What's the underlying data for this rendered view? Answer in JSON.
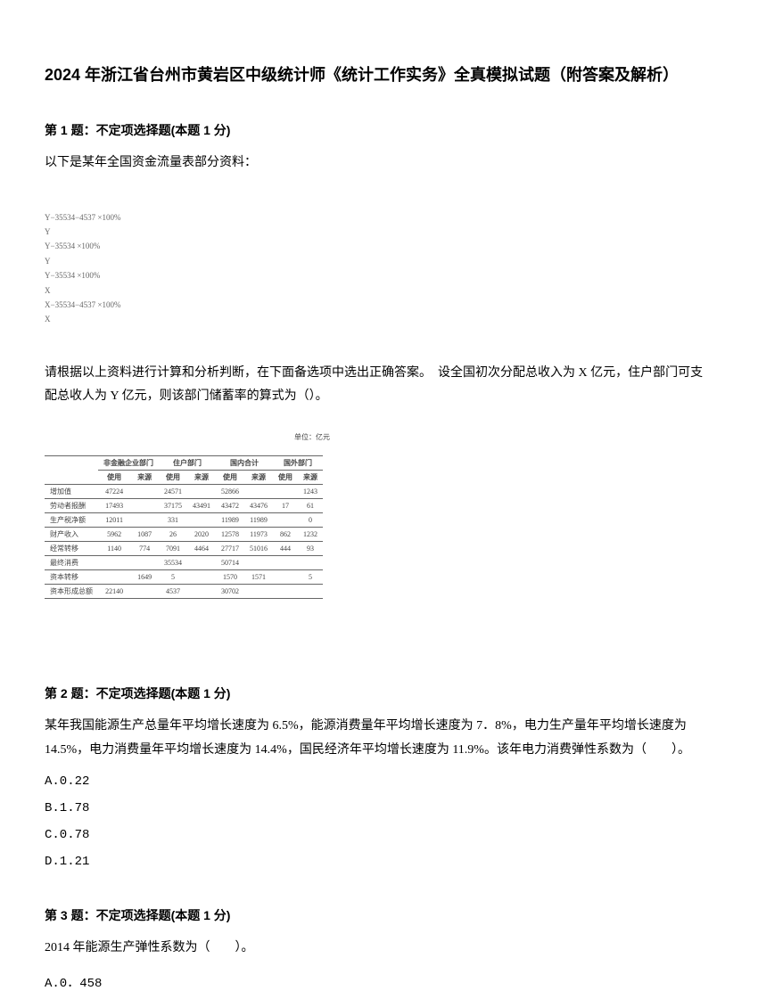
{
  "document": {
    "title": "2024 年浙江省台州市黄岩区中级统计师《统计工作实务》全真模拟试题（附答案及解析）"
  },
  "q1": {
    "heading": "第 1 题：不定项选择题(本题 1 分)",
    "intro": "以下是某年全国资金流量表部分资料：",
    "formulas": {
      "l1": "Y−35534−4537 ×100%",
      "l1b": "        Y",
      "l2": "Y−35534 ×100%",
      "l2b": "    Y",
      "l3": "Y−35534 ×100%",
      "l3b": "    X",
      "l4": "X−35534−4537 ×100%",
      "l4b": "        X"
    },
    "para": "请根据以上资料进行计算和分析判断，在下面备选项中选出正确答案。　设全国初次分配总收入为 X 亿元，住户部门可支配总收人为 Y 亿元，则该部门储蓄率的算式为（）。",
    "table": {
      "unit": "单位：亿元",
      "headers": {
        "group1": "非金融企业部门",
        "group2": "住户部门",
        "group3": "国内合计",
        "group4": "国外部门",
        "sub_use": "使用",
        "sub_src": "来源"
      },
      "rows": [
        {
          "label": "增加值",
          "c": [
            "47224",
            "",
            "24571",
            "",
            "52866",
            "",
            "",
            "1243"
          ]
        },
        {
          "label": "劳动者报酬",
          "c": [
            "17493",
            "",
            "37175",
            "43491",
            "43472",
            "43476",
            "17",
            "61"
          ]
        },
        {
          "label": "生产税净额",
          "c": [
            "12011",
            "",
            "331",
            "",
            "11989",
            "11989",
            "",
            "0"
          ]
        },
        {
          "label": "财产收入",
          "c": [
            "5962",
            "1087",
            "26",
            "2020",
            "12578",
            "11973",
            "862",
            "1232"
          ]
        },
        {
          "label": "经常转移",
          "c": [
            "1140",
            "774",
            "7091",
            "4464",
            "27717",
            "51016",
            "444",
            "93"
          ]
        },
        {
          "label": "最终消费",
          "c": [
            "",
            "",
            "35534",
            "",
            "50714",
            "",
            "",
            ""
          ]
        },
        {
          "label": "资本转移",
          "c": [
            "",
            "1649",
            "5",
            "",
            "1570",
            "1571",
            "",
            "5"
          ]
        },
        {
          "label": "资本形成总额",
          "c": [
            "22140",
            "",
            "4537",
            "",
            "30702",
            "",
            "",
            ""
          ]
        }
      ]
    }
  },
  "q2": {
    "heading": "第 2 题：不定项选择题(本题 1 分)",
    "para": "某年我国能源生产总量年平均增长速度为 6.5%，能源消费量年平均增长速度为 7．8%，电力生产量年平均增长速度为 14.5%，电力消费量年平均增长速度为 14.4%，国民经济年平均增长速度为 11.9%。该年电力消费弹性系数为（　　）。",
    "opts": {
      "a": "A.0.22",
      "b": "B.1.78",
      "c": "C.0.78",
      "d": "D.1.21"
    }
  },
  "q3": {
    "heading": "第 3 题：不定项选择题(本题 1 分)",
    "para": "2014 年能源生产弹性系数为（　　）。",
    "opts": {
      "a": "A.0．458"
    }
  }
}
